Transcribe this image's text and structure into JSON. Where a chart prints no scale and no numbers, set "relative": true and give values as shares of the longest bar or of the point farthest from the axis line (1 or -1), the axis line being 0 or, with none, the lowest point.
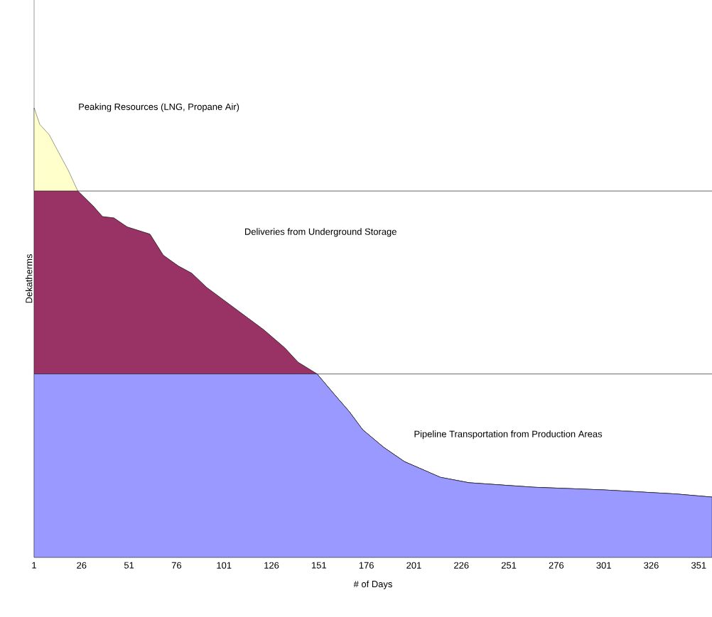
{
  "chart_data": {
    "type": "area",
    "relative": true,
    "stacked": true,
    "xlabel": "# of Days",
    "ylabel": "Dekatherms",
    "x": [
      1,
      4,
      9,
      13,
      19,
      24,
      32,
      37,
      43,
      50,
      62,
      69,
      77,
      84,
      92,
      107,
      122,
      133,
      140,
      150,
      159,
      167,
      174,
      185,
      196,
      215,
      230,
      264,
      301,
      339,
      358
    ],
    "xlim": [
      1,
      358
    ],
    "xticks": [
      1,
      26,
      51,
      76,
      101,
      126,
      151,
      176,
      201,
      226,
      251,
      276,
      301,
      326,
      351
    ],
    "series": [
      {
        "color": "#9999ff",
        "values": [
          0.408,
          0.408,
          0.408,
          0.408,
          0.408,
          0.408,
          0.408,
          0.408,
          0.408,
          0.408,
          0.408,
          0.408,
          0.408,
          0.408,
          0.408,
          0.408,
          0.408,
          0.408,
          0.408,
          0.408,
          0.363,
          0.324,
          0.284,
          0.245,
          0.213,
          0.178,
          0.166,
          0.156,
          0.15,
          0.141,
          0.134
        ]
      },
      {
        "color": "#993366",
        "values": [
          0.407,
          0.407,
          0.407,
          0.407,
          0.407,
          0.407,
          0.374,
          0.35,
          0.347,
          0.327,
          0.311,
          0.264,
          0.24,
          0.224,
          0.192,
          0.145,
          0.098,
          0.058,
          0.026,
          0,
          0,
          0,
          0,
          0,
          0,
          0,
          0,
          0,
          0,
          0,
          0
        ]
      },
      {
        "color": "#ffffcc",
        "values": [
          0.185,
          0.148,
          0.125,
          0.093,
          0.046,
          0,
          0,
          0,
          0,
          0,
          0,
          0,
          0,
          0,
          0,
          0,
          0,
          0,
          0,
          0,
          0,
          0,
          0,
          0,
          0,
          0,
          0,
          0,
          0,
          0,
          0
        ]
      }
    ],
    "ref_lines": [
      {
        "axis": "y",
        "value": 0.408,
        "color": "#000000"
      },
      {
        "axis": "y",
        "value": 0.815,
        "color": "#000000"
      }
    ],
    "annotations": [
      "Peaking Resources (LNG, Propane Air)",
      "Deliveries from Underground Storage",
      "Pipeline Transportation from Production Areas"
    ],
    "grid": false
  }
}
